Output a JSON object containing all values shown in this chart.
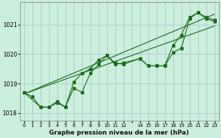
{
  "background_color": "#cceedd",
  "grid_color": "#aacccc",
  "line_color": "#1a6b1a",
  "title": "Graphe pression niveau de la mer (hPa)",
  "hours_s1": [
    0,
    1,
    2,
    3,
    4,
    5,
    6,
    7,
    8,
    9,
    10,
    11,
    12,
    14,
    15,
    16,
    17,
    18,
    19,
    20,
    21,
    22,
    23
  ],
  "series1": [
    1018.7,
    1018.55,
    1018.2,
    1018.2,
    1018.4,
    1018.2,
    1018.85,
    1018.7,
    1019.35,
    1019.65,
    1019.95,
    1019.7,
    1019.65,
    1019.85,
    1019.6,
    1019.6,
    1019.6,
    1020.05,
    1020.2,
    1021.2,
    1021.4,
    1021.25,
    1021.15
  ],
  "hours_s2": [
    0,
    2,
    3,
    4,
    5,
    6,
    7,
    8,
    9,
    10,
    11,
    12,
    14,
    15,
    16,
    17,
    18,
    19,
    20,
    21,
    22,
    23
  ],
  "series2": [
    1018.7,
    1018.2,
    1018.2,
    1018.35,
    1018.2,
    1019.05,
    1019.35,
    1019.5,
    1019.8,
    1019.95,
    1019.65,
    1019.7,
    1019.85,
    1019.6,
    1019.6,
    1019.6,
    1020.3,
    1020.65,
    1021.25,
    1021.4,
    1021.2,
    1021.1
  ],
  "trend_lines": [
    {
      "x": [
        0,
        23
      ],
      "y": [
        1018.65,
        1021.35
      ]
    },
    {
      "x": [
        0,
        23
      ],
      "y": [
        1018.65,
        1020.95
      ]
    }
  ],
  "ylim": [
    1017.75,
    1021.75
  ],
  "yticks": [
    1018,
    1019,
    1020,
    1021
  ],
  "xlim": [
    -0.5,
    23.5
  ],
  "xtick_positions": [
    0,
    1,
    2,
    3,
    4,
    5,
    6,
    7,
    8,
    9,
    10,
    11,
    12,
    13,
    14,
    15,
    16,
    17,
    18,
    19,
    20,
    21,
    22,
    23
  ],
  "xtick_labels": [
    "0",
    "1",
    "2",
    "3",
    "4",
    "5",
    "6",
    "7",
    "8",
    "9",
    "10",
    "11",
    "12",
    "",
    "14",
    "15",
    "16",
    "17",
    "18",
    "19",
    "20",
    "21",
    "22",
    "23"
  ]
}
